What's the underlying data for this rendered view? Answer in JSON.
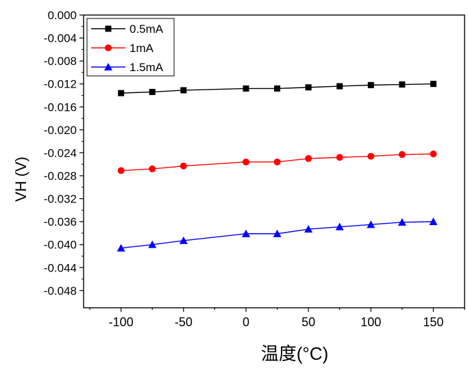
{
  "chart_data": {
    "type": "line",
    "title": "",
    "xlabel": "温度(°C)",
    "ylabel": "VH (V)",
    "xlim": [
      -130,
      175
    ],
    "ylim": [
      -0.051,
      0.0
    ],
    "x_ticks": [
      -100,
      -50,
      0,
      50,
      100,
      150
    ],
    "x_tick_labels": [
      "-100",
      "-50",
      "0",
      "50",
      "100",
      "150"
    ],
    "y_ticks": [
      0.0,
      -0.004,
      -0.008,
      -0.012,
      -0.016,
      -0.02,
      -0.024,
      -0.028,
      -0.032,
      -0.036,
      -0.04,
      -0.044,
      -0.048
    ],
    "y_tick_labels": [
      "0.000",
      "-0.004",
      "-0.008",
      "-0.012",
      "-0.016",
      "-0.020",
      "-0.024",
      "-0.028",
      "-0.032",
      "-0.036",
      "-0.040",
      "-0.044",
      "-0.048"
    ],
    "x": [
      -100,
      -75,
      -50,
      0,
      25,
      50,
      75,
      100,
      125,
      150
    ],
    "series": [
      {
        "name": "0.5mA",
        "color": "#000000",
        "marker": "square",
        "values": [
          -0.0136,
          -0.0134,
          -0.0131,
          -0.0128,
          -0.0128,
          -0.0126,
          -0.0124,
          -0.0122,
          -0.0121,
          -0.012
        ]
      },
      {
        "name": "1mA",
        "color": "#ff0000",
        "marker": "circle",
        "values": [
          -0.0271,
          -0.0268,
          -0.0263,
          -0.0256,
          -0.0256,
          -0.025,
          -0.0248,
          -0.0246,
          -0.0243,
          -0.0242
        ]
      },
      {
        "name": "1.5mA",
        "color": "#0000ff",
        "marker": "triangle",
        "values": [
          -0.0406,
          -0.04,
          -0.0393,
          -0.0381,
          -0.0381,
          -0.0373,
          -0.0369,
          -0.0365,
          -0.0361,
          -0.036
        ]
      }
    ],
    "legend": "top-left",
    "grid": false
  }
}
